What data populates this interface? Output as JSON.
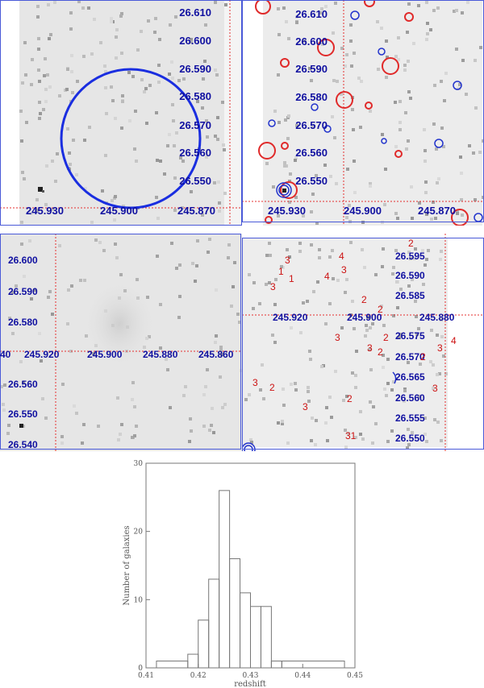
{
  "panels": {
    "tl": {
      "dec_labels": [
        "26.610",
        "26.600",
        "26.590",
        "26.580",
        "26.570",
        "26.560",
        "26.550"
      ],
      "ra_labels": [
        "245.930",
        "245.900",
        "245.870"
      ]
    },
    "tr": {
      "dec_labels": [
        "26.610",
        "26.600",
        "26.590",
        "26.580",
        "26.570",
        "26.560",
        "26.550"
      ],
      "ra_labels": [
        "245.930",
        "245.900",
        "245.870"
      ]
    },
    "bl": {
      "dec_labels": [
        "26.600",
        "26.590",
        "26.580",
        "26.570",
        "26.560",
        "26.550",
        "26.540"
      ],
      "ra_labels": [
        "40",
        "245.920",
        "245.900",
        "245.880",
        "245.860"
      ]
    },
    "br": {
      "dec_labels": [
        "26.595",
        "26.590",
        "26.585",
        "26.575",
        "26.570",
        "26.565",
        "26.560",
        "26.555",
        "26.550"
      ],
      "ra_labels": [
        "245.920",
        "245.900",
        "245.880"
      ],
      "galaxy_numbers": [
        "2",
        "3",
        "1",
        "3",
        "1",
        "4",
        "3",
        "4",
        "2",
        "2",
        "2",
        "3",
        "3",
        "2",
        "2",
        "3",
        "4",
        "3",
        "2",
        "3",
        "2",
        "3",
        "31",
        "3",
        "4"
      ]
    }
  },
  "chart_data": {
    "type": "histogram",
    "xlabel": "redshift",
    "ylabel": "Number of galaxies",
    "xlim": [
      0.41,
      0.45
    ],
    "ylim": [
      0,
      30
    ],
    "x_ticks": [
      "0.41",
      "0.42",
      "0.43",
      "0.44",
      "0.45"
    ],
    "y_ticks": [
      "0",
      "10",
      "20",
      "30"
    ],
    "bin_edges": [
      0.412,
      0.418,
      0.42,
      0.422,
      0.424,
      0.426,
      0.428,
      0.43,
      0.432,
      0.434,
      0.436,
      0.448
    ],
    "counts": [
      1,
      2,
      7,
      13,
      26,
      16,
      11,
      9,
      9,
      1,
      1
    ]
  }
}
